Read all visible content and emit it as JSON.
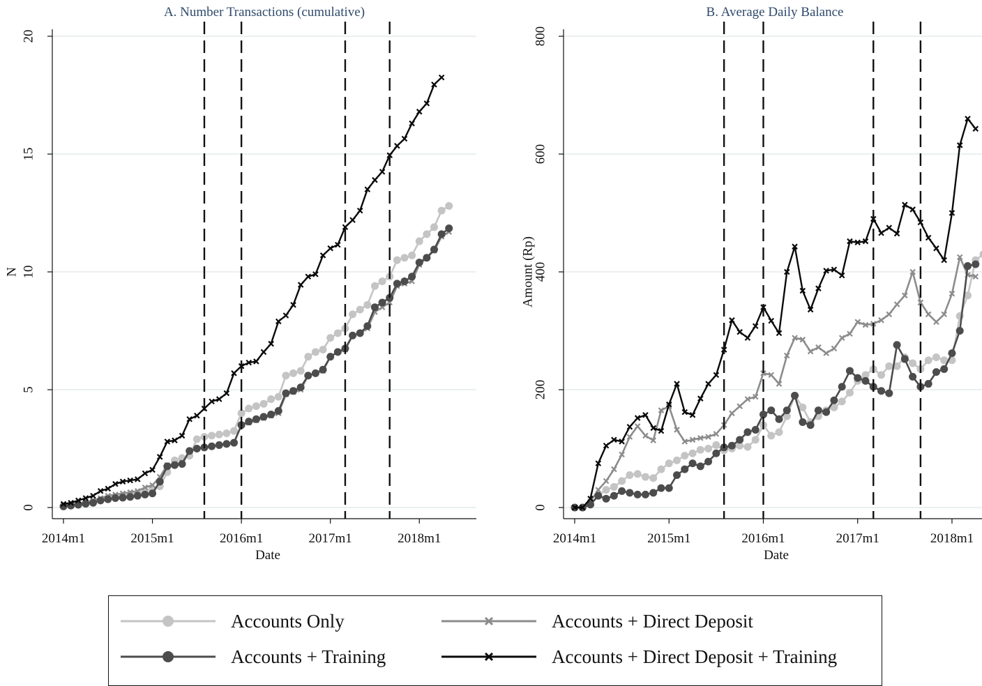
{
  "chart_data": [
    {
      "type": "line",
      "title": "A. Number Transactions (cumulative)",
      "xlabel": "Date",
      "ylabel": "N",
      "xtick_labels": [
        "2014m1",
        "2015m1",
        "2016m1",
        "2017m1",
        "2018m1"
      ],
      "ytick_labels": [
        "0",
        "5",
        "10",
        "15",
        "20"
      ],
      "ylim": [
        0,
        20
      ],
      "xlim_months_from_2014m1": [
        -3.5,
        51
      ],
      "grid": "horizontal",
      "vlines_months_from_2014m1": [
        19,
        24,
        38,
        44
      ],
      "series_ref": "shared",
      "series": [
        {
          "name": "Accounts Only",
          "values": [
            0.05,
            0.1,
            0.15,
            0.2,
            0.25,
            0.3,
            0.4,
            0.45,
            0.5,
            0.55,
            0.6,
            0.7,
            0.8,
            0.9,
            1.5,
            2.0,
            2.1,
            2.2,
            2.9,
            3.0,
            3.05,
            3.1,
            3.15,
            3.25,
            4.0,
            4.2,
            4.3,
            4.4,
            4.6,
            4.7,
            5.6,
            5.7,
            5.8,
            6.4,
            6.6,
            6.7,
            7.2,
            7.4,
            7.6,
            8.2,
            8.4,
            8.6,
            9.4,
            9.6,
            9.8,
            10.5,
            10.6,
            10.7,
            11.3,
            11.6,
            11.9,
            12.6,
            12.8
          ]
        },
        {
          "name": "Accounts + Direct Deposit",
          "values": [
            0.05,
            0.1,
            0.15,
            0.2,
            0.3,
            0.4,
            0.5,
            0.55,
            0.6,
            0.65,
            0.7,
            0.85,
            0.95,
            1.3,
            1.8,
            1.85,
            1.9,
            2.4,
            2.5,
            2.55,
            2.6,
            2.65,
            2.7,
            2.75,
            3.5,
            3.6,
            3.7,
            3.8,
            3.9,
            4.0,
            4.8,
            4.9,
            5.0,
            5.6,
            5.7,
            5.8,
            6.4,
            6.6,
            6.7,
            7.3,
            7.4,
            7.6,
            8.3,
            8.5,
            8.7,
            9.4,
            9.5,
            9.6,
            10.3,
            10.6,
            10.9,
            11.5,
            11.7
          ]
        },
        {
          "name": "Accounts + Training",
          "values": [
            0.05,
            0.08,
            0.12,
            0.16,
            0.2,
            0.3,
            0.35,
            0.4,
            0.42,
            0.45,
            0.5,
            0.55,
            0.6,
            1.1,
            1.75,
            1.8,
            1.85,
            2.4,
            2.5,
            2.55,
            2.6,
            2.65,
            2.7,
            2.75,
            3.5,
            3.65,
            3.75,
            3.85,
            3.95,
            4.1,
            4.85,
            4.95,
            5.1,
            5.6,
            5.7,
            5.85,
            6.4,
            6.6,
            6.75,
            7.3,
            7.4,
            7.7,
            8.5,
            8.7,
            8.9,
            9.5,
            9.6,
            9.8,
            10.4,
            10.6,
            10.95,
            11.6,
            11.85
          ]
        },
        {
          "name": "Accounts + Direct Deposit + Training",
          "values": [
            0.15,
            0.2,
            0.3,
            0.4,
            0.5,
            0.7,
            0.8,
            1.0,
            1.1,
            1.15,
            1.2,
            1.45,
            1.6,
            2.15,
            2.8,
            2.85,
            3.05,
            3.75,
            3.9,
            4.2,
            4.5,
            4.6,
            4.85,
            5.7,
            6.0,
            6.15,
            6.2,
            6.6,
            6.95,
            7.9,
            8.15,
            8.6,
            9.45,
            9.8,
            9.9,
            10.7,
            11.0,
            11.15,
            11.9,
            12.2,
            12.6,
            13.5,
            13.9,
            14.25,
            14.95,
            15.35,
            15.65,
            16.3,
            16.8,
            17.15,
            17.95,
            18.25
          ]
        }
      ]
    },
    {
      "type": "line",
      "title": "B. Average Daily Balance",
      "xlabel": "Date",
      "ylabel": "Amount (Rp)",
      "xtick_labels": [
        "2014m1",
        "2015m1",
        "2016m1",
        "2017m1",
        "2018m1"
      ],
      "ytick_labels": [
        "0",
        "200",
        "400",
        "600",
        "800"
      ],
      "ylim": [
        0,
        800
      ],
      "xlim_months_from_2014m1": [
        -3.5,
        51
      ],
      "grid": "horizontal",
      "vlines_months_from_2014m1": [
        19,
        24,
        38,
        44
      ],
      "series": [
        {
          "name": "Accounts Only",
          "values": [
            0,
            0,
            5,
            20,
            30,
            35,
            45,
            55,
            57,
            52,
            50,
            65,
            75,
            80,
            88,
            92,
            98,
            100,
            106,
            97,
            100,
            105,
            103,
            115,
            140,
            122,
            128,
            155,
            190,
            170,
            145,
            155,
            165,
            170,
            180,
            195,
            215,
            225,
            235,
            225,
            240,
            240,
            255,
            245,
            235,
            250,
            255,
            250,
            250,
            325,
            360,
            420,
            430
          ]
        },
        {
          "name": "Accounts + Direct Deposit",
          "values": [
            0,
            0,
            10,
            30,
            45,
            65,
            90,
            120,
            138,
            122,
            114,
            165,
            172,
            132,
            112,
            115,
            118,
            120,
            125,
            140,
            160,
            172,
            184,
            188,
            228,
            225,
            210,
            258,
            288,
            285,
            265,
            272,
            262,
            270,
            288,
            295,
            315,
            310,
            312,
            318,
            328,
            345,
            360,
            400,
            348,
            328,
            315,
            328,
            363,
            425,
            395,
            392
          ]
        },
        {
          "name": "Accounts + Training",
          "values": [
            0,
            0,
            5,
            20,
            15,
            20,
            28,
            25,
            22,
            22,
            25,
            33,
            33,
            55,
            65,
            75,
            70,
            78,
            92,
            102,
            105,
            115,
            128,
            132,
            158,
            165,
            150,
            165,
            190,
            145,
            140,
            165,
            162,
            182,
            205,
            232,
            220,
            215,
            205,
            198,
            194,
            276,
            252,
            222,
            205,
            210,
            230,
            235,
            262,
            300,
            410,
            413
          ]
        },
        {
          "name": "Accounts + Direct Deposit + Training",
          "values": [
            0,
            0,
            15,
            75,
            105,
            115,
            112,
            137,
            152,
            157,
            135,
            130,
            175,
            210,
            162,
            157,
            185,
            210,
            225,
            268,
            318,
            298,
            288,
            308,
            340,
            317,
            296,
            400,
            443,
            368,
            336,
            372,
            402,
            404,
            394,
            452,
            450,
            452,
            490,
            466,
            475,
            465,
            514,
            506,
            484,
            458,
            440,
            420,
            500,
            615,
            660,
            643
          ]
        }
      ]
    }
  ],
  "legend": {
    "items": [
      {
        "label": "Accounts Only",
        "color": "#c4c4c4",
        "marker": "circle"
      },
      {
        "label": "Accounts + Direct Deposit",
        "color": "#8c8c8c",
        "marker": "x"
      },
      {
        "label": "Accounts + Training",
        "color": "#4c4c4c",
        "marker": "circle"
      },
      {
        "label": "Accounts + Direct Deposit + Training",
        "color": "#0a0a0a",
        "marker": "x"
      }
    ]
  },
  "style": {
    "grid_color": "#e3ece9",
    "title_color": "#2f4a6b",
    "series_colors": [
      "#c4c4c4",
      "#8c8c8c",
      "#4c4c4c",
      "#0a0a0a"
    ],
    "series_markers": [
      "circle",
      "x",
      "circle",
      "x"
    ]
  }
}
